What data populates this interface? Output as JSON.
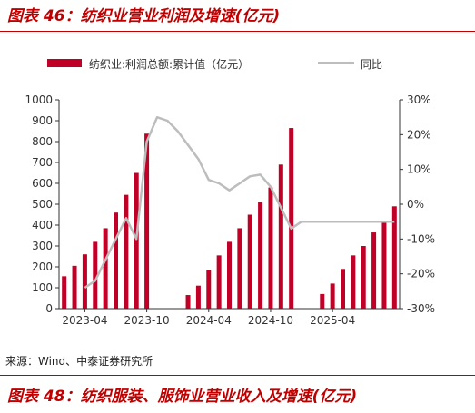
{
  "titles": {
    "top": "图表 46：纺织业营业利润及增速(亿元)",
    "bottom": "图表 48：纺织服装、服饰业营业收入及增速(亿元)"
  },
  "legend": {
    "bar_label": "纺织业:利润总额:累计值（亿元）",
    "line_label": "同比"
  },
  "source": "来源：Wind、中泰证券研究所",
  "colors": {
    "bar": "#c00026",
    "line": "#bdbdbd",
    "title": "#c00000"
  },
  "chart_data": {
    "type": "bar",
    "categories": [
      "2023-02",
      "2023-03",
      "2023-04",
      "2023-05",
      "2023-06",
      "2023-07",
      "2023-08",
      "2023-09",
      "2023-10",
      "2023-11",
      "2023-12",
      "2024-01",
      "2024-02",
      "2024-03",
      "2024-04",
      "2024-05",
      "2024-06",
      "2024-07",
      "2024-08",
      "2024-09",
      "2024-10",
      "2024-11",
      "2024-12",
      "2025-01",
      "2025-02",
      "2025-03",
      "2025-04",
      "2025-05",
      "2025-06",
      "2025-07",
      "2025-08",
      "2025-09",
      "2025-10"
    ],
    "x_tick_labels": [
      "2023-04",
      "2023-10",
      "2024-04",
      "2024-10",
      "2025-04"
    ],
    "x_tick_categories": [
      "2023-04",
      "2023-10",
      "2024-04",
      "2024-10",
      "2025-04"
    ],
    "series": [
      {
        "name": "纺织业:利润总额:累计值（亿元）",
        "type": "bar",
        "axis": "left",
        "values": [
          155,
          205,
          260,
          320,
          385,
          460,
          545,
          650,
          838,
          null,
          null,
          null,
          65,
          110,
          185,
          255,
          320,
          385,
          450,
          510,
          580,
          690,
          865,
          null,
          null,
          70,
          120,
          190,
          255,
          300,
          365,
          415,
          490
        ]
      },
      {
        "name": "同比",
        "type": "line",
        "axis": "right",
        "values": [
          null,
          null,
          null,
          null,
          null,
          null,
          null,
          null,
          null,
          null,
          null,
          null,
          null,
          null,
          null,
          null,
          null,
          null,
          null,
          null,
          null,
          null,
          null,
          null,
          null,
          null,
          null,
          null,
          null,
          null,
          null,
          null,
          null
        ]
      }
    ],
    "yoy_line_points": {
      "categories": [
        "2023-04",
        "2023-05",
        "2023-06",
        "2023-07",
        "2023-08",
        "2023-09",
        "2023-10",
        "2023-11",
        "2023-12",
        "2024-01",
        "2024-02",
        "2024-03",
        "2024-04",
        "2024-05",
        "2024-06",
        "2024-07",
        "2024-08",
        "2024-09",
        "2024-10",
        "2024-11",
        "2024-12",
        "2025-01",
        "2025-02",
        "2025-03",
        "2025-04",
        "2025-05",
        "2025-06",
        "2025-07",
        "2025-08",
        "2025-09",
        "2025-10"
      ],
      "values": [
        -24,
        -22,
        -16,
        -10,
        -4,
        -10,
        18,
        25,
        24,
        21,
        17,
        13,
        7,
        6,
        4,
        6,
        8,
        8.5,
        5,
        -1,
        -7,
        -5,
        -5,
        -5,
        -5,
        -5,
        -5,
        -5,
        -5,
        -5,
        -5
      ]
    },
    "y_left": {
      "min": 0,
      "max": 1000,
      "ticks": [
        0,
        100,
        200,
        300,
        400,
        500,
        600,
        700,
        800,
        900,
        1000
      ]
    },
    "y_right": {
      "min": -30,
      "max": 30,
      "ticks": [
        -30,
        -20,
        -10,
        0,
        10,
        20,
        30
      ],
      "tick_labels": [
        "-30%",
        "-20%",
        "-10%",
        "0%",
        "10%",
        "20%",
        "30%"
      ]
    },
    "legend_position": "top",
    "grid": false
  }
}
